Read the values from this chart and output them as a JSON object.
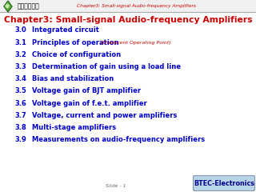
{
  "header_red_text": "Chapter3: Small-signal Audio-frequency Amplifiers",
  "header_logo_text": "广东教育学院",
  "title": "Chapter3: Small-signal Audio-frequency Amplifiers",
  "items": [
    {
      "num": "3.0",
      "text": "Integrated circuit",
      "annotation": ""
    },
    {
      "num": "3.1",
      "text": "Principles of operation",
      "annotation": "(Quiescent Operating Point)"
    },
    {
      "num": "3.2",
      "text": "Choice of configuration",
      "annotation": ""
    },
    {
      "num": "3.3",
      "text": "Determination of gain using a load line",
      "annotation": ""
    },
    {
      "num": "3.4",
      "text": "Bias and stabilization",
      "annotation": ""
    },
    {
      "num": "3.5",
      "text": "Voltage gain of BJT amplifier",
      "annotation": ""
    },
    {
      "num": "3.6",
      "text": "Voltage gain of f.e.t. amplifier",
      "annotation": ""
    },
    {
      "num": "3.7",
      "text": "Voltage, current and power amplifiers",
      "annotation": ""
    },
    {
      "num": "3.8",
      "text": "Multi-stage amplifiers",
      "annotation": ""
    },
    {
      "num": "3.9",
      "text": "Measurements on audio-frequency amplifiers",
      "annotation": ""
    }
  ],
  "slide_label": "Slide - 1",
  "btec_label": "BTEC-Electronics",
  "bg_color": "#ffffff",
  "title_color": "#cc0000",
  "item_num_color": "#0000cc",
  "item_text_color": "#0000cc",
  "annotation_color": "#cc0000",
  "header_text_color": "#cc0000",
  "btec_bg_color": "#b8d4e8",
  "btec_text_color": "#00008b",
  "slide_label_color": "#666666",
  "header_bg_color": "#f0f0f0",
  "logo_outer_color": "#2d6e2d",
  "logo_inner_color": "#5aaa3a",
  "logo_highlight_color": "#c8e8a0"
}
